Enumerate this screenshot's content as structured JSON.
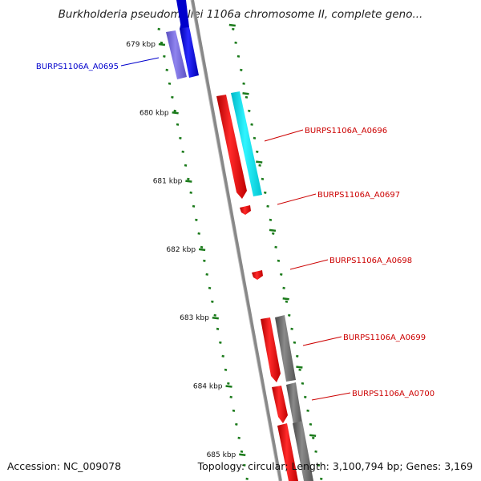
{
  "header": {
    "title": "Burkholderia pseudomallei 1106a chromosome II, complete geno..."
  },
  "footer": {
    "accession": "Accession: NC_009078",
    "summary": "Topology: circular; Length: 3,100,794 bp; Genes: 3,169"
  },
  "scale": {
    "unit": "kbp",
    "ticks": [
      "679 kbp",
      "680 kbp",
      "681 kbp",
      "682 kbp",
      "683 kbp",
      "684 kbp",
      "685 kbp"
    ]
  },
  "genes": [
    {
      "label": "BURPS1106A_A0695",
      "color": "#0000cc"
    },
    {
      "label": "BURPS1106A_A0696",
      "color": "#cc0000"
    },
    {
      "label": "BURPS1106A_A0697",
      "color": "#cc0000"
    },
    {
      "label": "BURPS1106A_A0698",
      "color": "#cc0000"
    },
    {
      "label": "BURPS1106A_A0699",
      "color": "#cc0000"
    },
    {
      "label": "BURPS1106A_A0700",
      "color": "#cc0000"
    }
  ],
  "colors": {
    "backbone": "#888888",
    "tick": "#1a7a1a",
    "cds_forward": "#ff0000",
    "cds_reverse": "#0000ff",
    "blast_cyan": "#00e5ee",
    "blast_purple": "#7b6fd6",
    "blast_gray": "#6e6e6e"
  }
}
